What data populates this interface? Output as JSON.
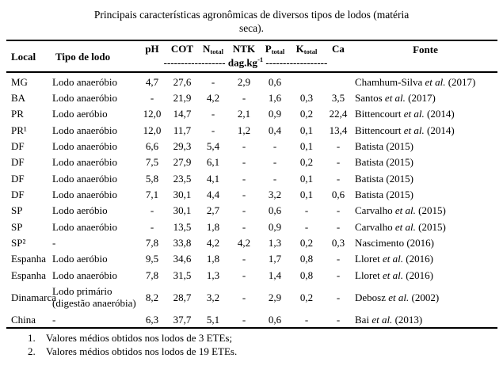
{
  "caption": {
    "lines": [
      "Principais características agronômicas de diversos tipos de lodos (matéria",
      "seca)."
    ]
  },
  "table": {
    "columns": [
      {
        "label": "Local"
      },
      {
        "label": "Tipo de lodo"
      },
      {
        "base": "pH"
      },
      {
        "base": "COT"
      },
      {
        "base": "N",
        "sub": "total"
      },
      {
        "base": "NTK"
      },
      {
        "base": "P",
        "sub": "total"
      },
      {
        "base": "K",
        "sub": "total"
      },
      {
        "base": "Ca"
      },
      {
        "label": "Fonte"
      }
    ],
    "unit_row": {
      "dashes_left": "------------------",
      "unit_base": " dag.kg",
      "unit_sup": "-1",
      "dashes_right": " ------------------"
    },
    "rows": [
      [
        "MG",
        "Lodo anaeróbio",
        "4,7",
        "27,6",
        "-",
        "2,9",
        "0,6",
        "",
        "",
        "Chamhum-Silva et al. (2017)"
      ],
      [
        "BA",
        "Lodo anaeróbio",
        "-",
        "21,9",
        "4,2",
        "-",
        "1,6",
        "0,3",
        "3,5",
        "Santos et al. (2017)"
      ],
      [
        "PR",
        "Lodo aeróbio",
        "12,0",
        "14,7",
        "-",
        "2,1",
        "0,9",
        "0,2",
        "22,4",
        "Bittencourt et al. (2014)"
      ],
      [
        "PR¹",
        "Lodo anaeróbio",
        "12,0",
        "11,7",
        "-",
        "1,2",
        "0,4",
        "0,1",
        "13,4",
        "Bittencourt et al. (2014)"
      ],
      [
        "DF",
        "Lodo anaeróbio",
        "6,6",
        "29,3",
        "5,4",
        "-",
        "-",
        "0,1",
        "-",
        "Batista (2015)"
      ],
      [
        "DF",
        "Lodo anaeróbio",
        "7,5",
        "27,9",
        "6,1",
        "-",
        "-",
        "0,2",
        "-",
        "Batista (2015)"
      ],
      [
        "DF",
        "Lodo anaeróbio",
        "5,8",
        "23,5",
        "4,1",
        "-",
        "-",
        "0,1",
        "-",
        "Batista (2015)"
      ],
      [
        "DF",
        "Lodo anaeróbio",
        "7,1",
        "30,1",
        "4,4",
        "-",
        "3,2",
        "0,1",
        "0,6",
        "Batista (2015)"
      ],
      [
        "SP",
        "Lodo aeróbio",
        "-",
        "30,1",
        "2,7",
        "-",
        "0,6",
        "-",
        "-",
        "Carvalho et al. (2015)"
      ],
      [
        "SP",
        "Lodo anaeróbio",
        "-",
        "13,5",
        "1,8",
        "-",
        "0,9",
        "-",
        "-",
        "Carvalho et al. (2015)"
      ],
      [
        "SP²",
        "-",
        "7,8",
        "33,8",
        "4,2",
        "4,2",
        "1,3",
        "0,2",
        "0,3",
        "Nascimento (2016)"
      ],
      [
        "Espanha",
        "Lodo aeróbio",
        "9,5",
        "34,6",
        "1,8",
        "-",
        "1,7",
        "0,8",
        "-",
        "Lloret et al. (2016)"
      ],
      [
        "Espanha",
        "Lodo anaeróbio",
        "7,8",
        "31,5",
        "1,3",
        "-",
        "1,4",
        "0,8",
        "-",
        "Lloret et al. (2016)"
      ],
      [
        "Dinamarca",
        "Lodo primário (digestão anaeróbia)",
        "8,2",
        "28,7",
        "3,2",
        "-",
        "2,9",
        "0,2",
        "-",
        "Debosz et al. (2002)"
      ],
      [
        "China",
        "-",
        "6,3",
        "37,7",
        "5,1",
        "-",
        "0,6",
        "-",
        "-",
        "Bai et al. (2013)"
      ]
    ]
  },
  "footnotes": [
    {
      "num": "1.",
      "text": "Valores médios obtidos nos lodos de 3 ETEs;"
    },
    {
      "num": "2.",
      "text": "Valores médios obtidos nos lodos de 19 ETEs."
    }
  ]
}
